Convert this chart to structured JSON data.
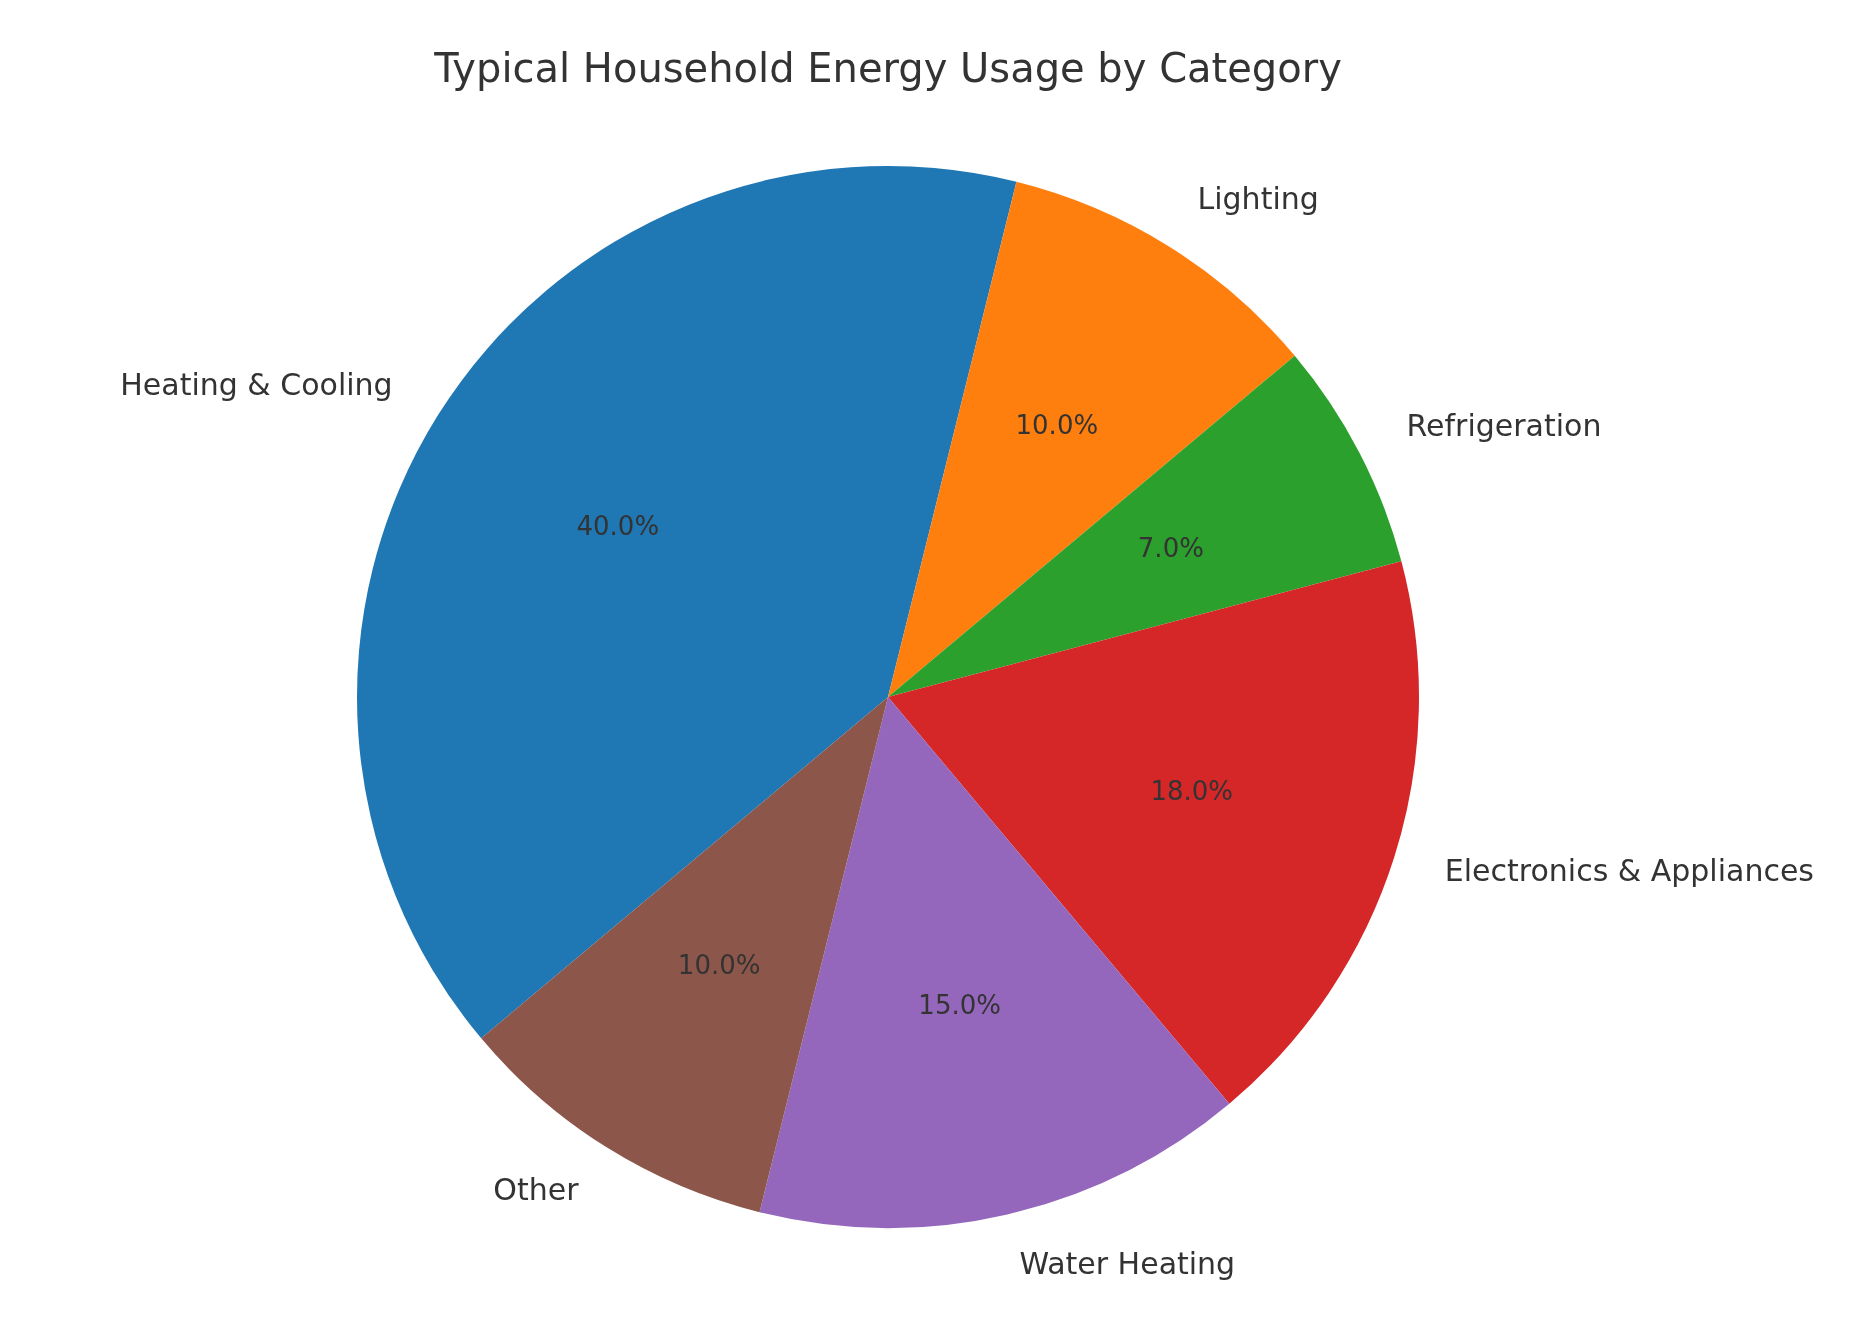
{
  "chart_data": {
    "type": "pie",
    "title": "Typical Household Energy Usage by Category",
    "categories": [
      "Heating & Cooling",
      "Lighting",
      "Refrigeration",
      "Electronics & Appliances",
      "Water Heating",
      "Other"
    ],
    "values": [
      40,
      10,
      7,
      18,
      15,
      10
    ],
    "colors": [
      "#1f77b4",
      "#ff7f0e",
      "#2ca02c",
      "#d62728",
      "#9467bd",
      "#8c564b"
    ],
    "value_labels": [
      "40.0%",
      "10.0%",
      "7.0%",
      "18.0%",
      "15.0%",
      "10.0%"
    ],
    "legend": false
  }
}
